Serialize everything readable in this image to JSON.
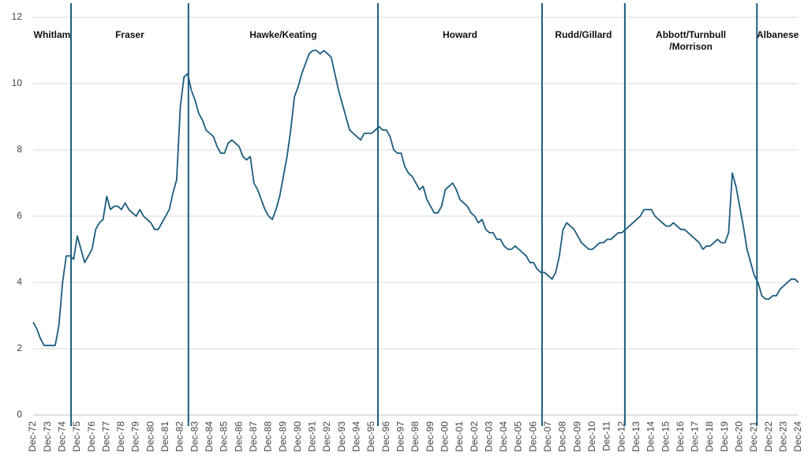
{
  "chart_data": {
    "type": "line",
    "categories": [
      "Dec-72",
      null,
      null,
      null,
      "Dec-73",
      null,
      null,
      null,
      "Dec-74",
      null,
      null,
      null,
      "Dec-75",
      null,
      null,
      null,
      "Dec-76",
      null,
      null,
      null,
      "Dec-77",
      null,
      null,
      null,
      "Dec-78",
      null,
      null,
      null,
      "Dec-79",
      null,
      null,
      null,
      "Dec-80",
      null,
      null,
      null,
      "Dec-81",
      null,
      null,
      null,
      "Dec-82",
      null,
      null,
      null,
      "Dec-83",
      null,
      null,
      null,
      "Dec-84",
      null,
      null,
      null,
      "Dec-85",
      null,
      null,
      null,
      "Dec-86",
      null,
      null,
      null,
      "Dec-87",
      null,
      null,
      null,
      "Dec-88",
      null,
      null,
      null,
      "Dec-89",
      null,
      null,
      null,
      "Dec-90",
      null,
      null,
      null,
      "Dec-91",
      null,
      null,
      null,
      "Dec-92",
      null,
      null,
      null,
      "Dec-93",
      null,
      null,
      null,
      "Dec-94",
      null,
      null,
      null,
      "Dec-95",
      null,
      null,
      null,
      "Dec-96",
      null,
      null,
      null,
      "Dec-97",
      null,
      null,
      null,
      "Dec-98",
      null,
      null,
      null,
      "Dec-99",
      null,
      null,
      null,
      "Dec-00",
      null,
      null,
      null,
      "Dec-01",
      null,
      null,
      null,
      "Dec-02",
      null,
      null,
      null,
      "Dec-03",
      null,
      null,
      null,
      "Dec-04",
      null,
      null,
      null,
      "Dec-05",
      null,
      null,
      null,
      "Dec-06",
      null,
      null,
      null,
      "Dec-07",
      null,
      null,
      null,
      "Dec-08",
      null,
      null,
      null,
      "Dec-09",
      null,
      null,
      null,
      "Dec-10",
      null,
      null,
      null,
      "Dec-11",
      null,
      null,
      null,
      "Dec-12",
      null,
      null,
      null,
      "Dec-13",
      null,
      null,
      null,
      "Dec-14",
      null,
      null,
      null,
      "Dec-15",
      null,
      null,
      null,
      "Dec-16",
      null,
      null,
      null,
      "Dec-17",
      null,
      null,
      null,
      "Dec-18",
      null,
      null,
      null,
      "Dec-19",
      null,
      null,
      null,
      "Dec-20",
      null,
      null,
      null,
      "Dec-21",
      null,
      null,
      null,
      "Dec-22",
      null,
      null,
      null,
      "Dec-23",
      null,
      null,
      null,
      "Dec-24"
    ],
    "values": [
      2.8,
      2.6,
      2.3,
      2.1,
      2.1,
      2.1,
      2.1,
      2.7,
      4.0,
      4.8,
      4.8,
      4.7,
      5.4,
      5.0,
      4.6,
      4.8,
      5.0,
      5.6,
      5.8,
      5.9,
      6.6,
      6.2,
      6.3,
      6.3,
      6.2,
      6.4,
      6.2,
      6.1,
      6.0,
      6.2,
      6.0,
      5.9,
      5.8,
      5.6,
      5.6,
      5.8,
      6.0,
      6.2,
      6.7,
      7.1,
      9.3,
      10.2,
      10.3,
      9.8,
      9.5,
      9.1,
      8.9,
      8.6,
      8.5,
      8.4,
      8.1,
      7.9,
      7.9,
      8.2,
      8.3,
      8.2,
      8.1,
      7.8,
      7.7,
      7.8,
      7.0,
      6.8,
      6.5,
      6.2,
      6.0,
      5.9,
      6.2,
      6.6,
      7.2,
      7.8,
      8.6,
      9.6,
      9.9,
      10.3,
      10.6,
      10.9,
      11.0,
      11.0,
      10.9,
      11.0,
      10.9,
      10.8,
      10.3,
      9.8,
      9.4,
      9.0,
      8.6,
      8.5,
      8.4,
      8.3,
      8.5,
      8.5,
      8.5,
      8.6,
      8.7,
      8.6,
      8.6,
      8.4,
      8.0,
      7.9,
      7.9,
      7.5,
      7.3,
      7.2,
      7.0,
      6.8,
      6.9,
      6.5,
      6.3,
      6.1,
      6.1,
      6.3,
      6.8,
      6.9,
      7.0,
      6.8,
      6.5,
      6.4,
      6.3,
      6.1,
      6.0,
      5.8,
      5.9,
      5.6,
      5.5,
      5.5,
      5.3,
      5.3,
      5.1,
      5.0,
      5.0,
      5.1,
      5.0,
      4.9,
      4.8,
      4.6,
      4.6,
      4.4,
      4.3,
      4.3,
      4.2,
      4.1,
      4.3,
      4.8,
      5.6,
      5.8,
      5.7,
      5.6,
      5.4,
      5.2,
      5.1,
      5.0,
      5.0,
      5.1,
      5.2,
      5.2,
      5.3,
      5.3,
      5.4,
      5.5,
      5.5,
      5.6,
      5.7,
      5.8,
      5.9,
      6.0,
      6.2,
      6.2,
      6.2,
      6.0,
      5.9,
      5.8,
      5.7,
      5.7,
      5.8,
      5.7,
      5.6,
      5.6,
      5.5,
      5.4,
      5.3,
      5.2,
      5.0,
      5.1,
      5.1,
      5.2,
      5.3,
      5.2,
      5.2,
      5.5,
      7.3,
      6.9,
      6.3,
      5.7,
      5.0,
      4.6,
      4.2,
      4.0,
      3.6,
      3.5,
      3.5,
      3.6,
      3.6,
      3.8,
      3.9,
      4.0,
      4.1,
      4.1,
      4.0
    ],
    "color": "#1d5c7d",
    "ylim": [
      0,
      12
    ],
    "yticks": [
      0,
      2,
      4,
      6,
      8,
      10,
      12
    ],
    "grid": true,
    "periods": [
      {
        "label_lines": [
          "Whitlam"
        ]
      },
      {
        "label_lines": [
          "Fraser"
        ]
      },
      {
        "label_lines": [
          "Hawke/Keating"
        ]
      },
      {
        "label_lines": [
          "Howard"
        ]
      },
      {
        "label_lines": [
          "Rudd/Gillard"
        ]
      },
      {
        "label_lines": [
          "Abbott/Turnbull",
          "/Morrison"
        ]
      },
      {
        "label_lines": [
          "Albanese"
        ]
      }
    ],
    "boundaries": [
      10.3,
      42.2,
      93.7,
      138.3,
      160.8,
      196.7
    ]
  }
}
